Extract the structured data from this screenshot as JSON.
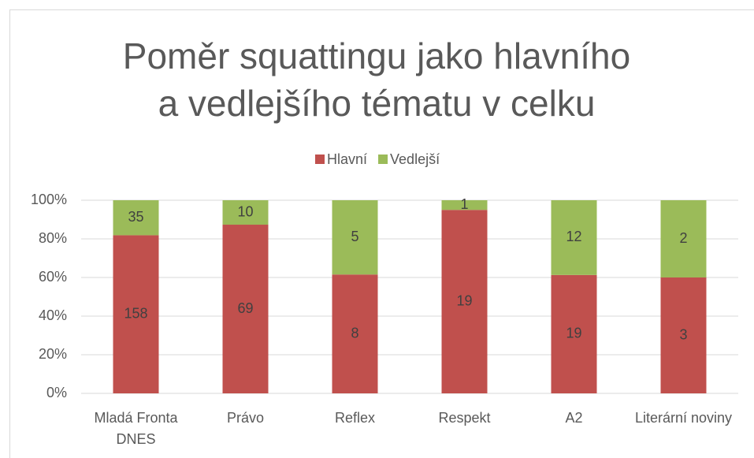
{
  "chart_data": {
    "type": "bar",
    "stacking": "percent",
    "title": "Poměr squattingu jako hlavního a vedlejšího tématu v celku",
    "categories": [
      "Mladá Fronta DNES",
      "Právo",
      "Reflex",
      "Respekt",
      "A2",
      "Literární noviny"
    ],
    "series": [
      {
        "name": "Hlavní",
        "color": "#c0504d",
        "values": [
          158,
          69,
          8,
          19,
          19,
          3
        ]
      },
      {
        "name": "Vedlejší",
        "color": "#9bbb59",
        "values": [
          35,
          10,
          5,
          1,
          12,
          2
        ]
      }
    ],
    "ylim": [
      0,
      100
    ],
    "yticks": [
      {
        "value": 0,
        "label": "0%"
      },
      {
        "value": 20,
        "label": "20%"
      },
      {
        "value": 40,
        "label": "40%"
      },
      {
        "value": 60,
        "label": "60%"
      },
      {
        "value": 80,
        "label": "80%"
      },
      {
        "value": 100,
        "label": "100%"
      }
    ],
    "grid": true,
    "legend": "top"
  }
}
